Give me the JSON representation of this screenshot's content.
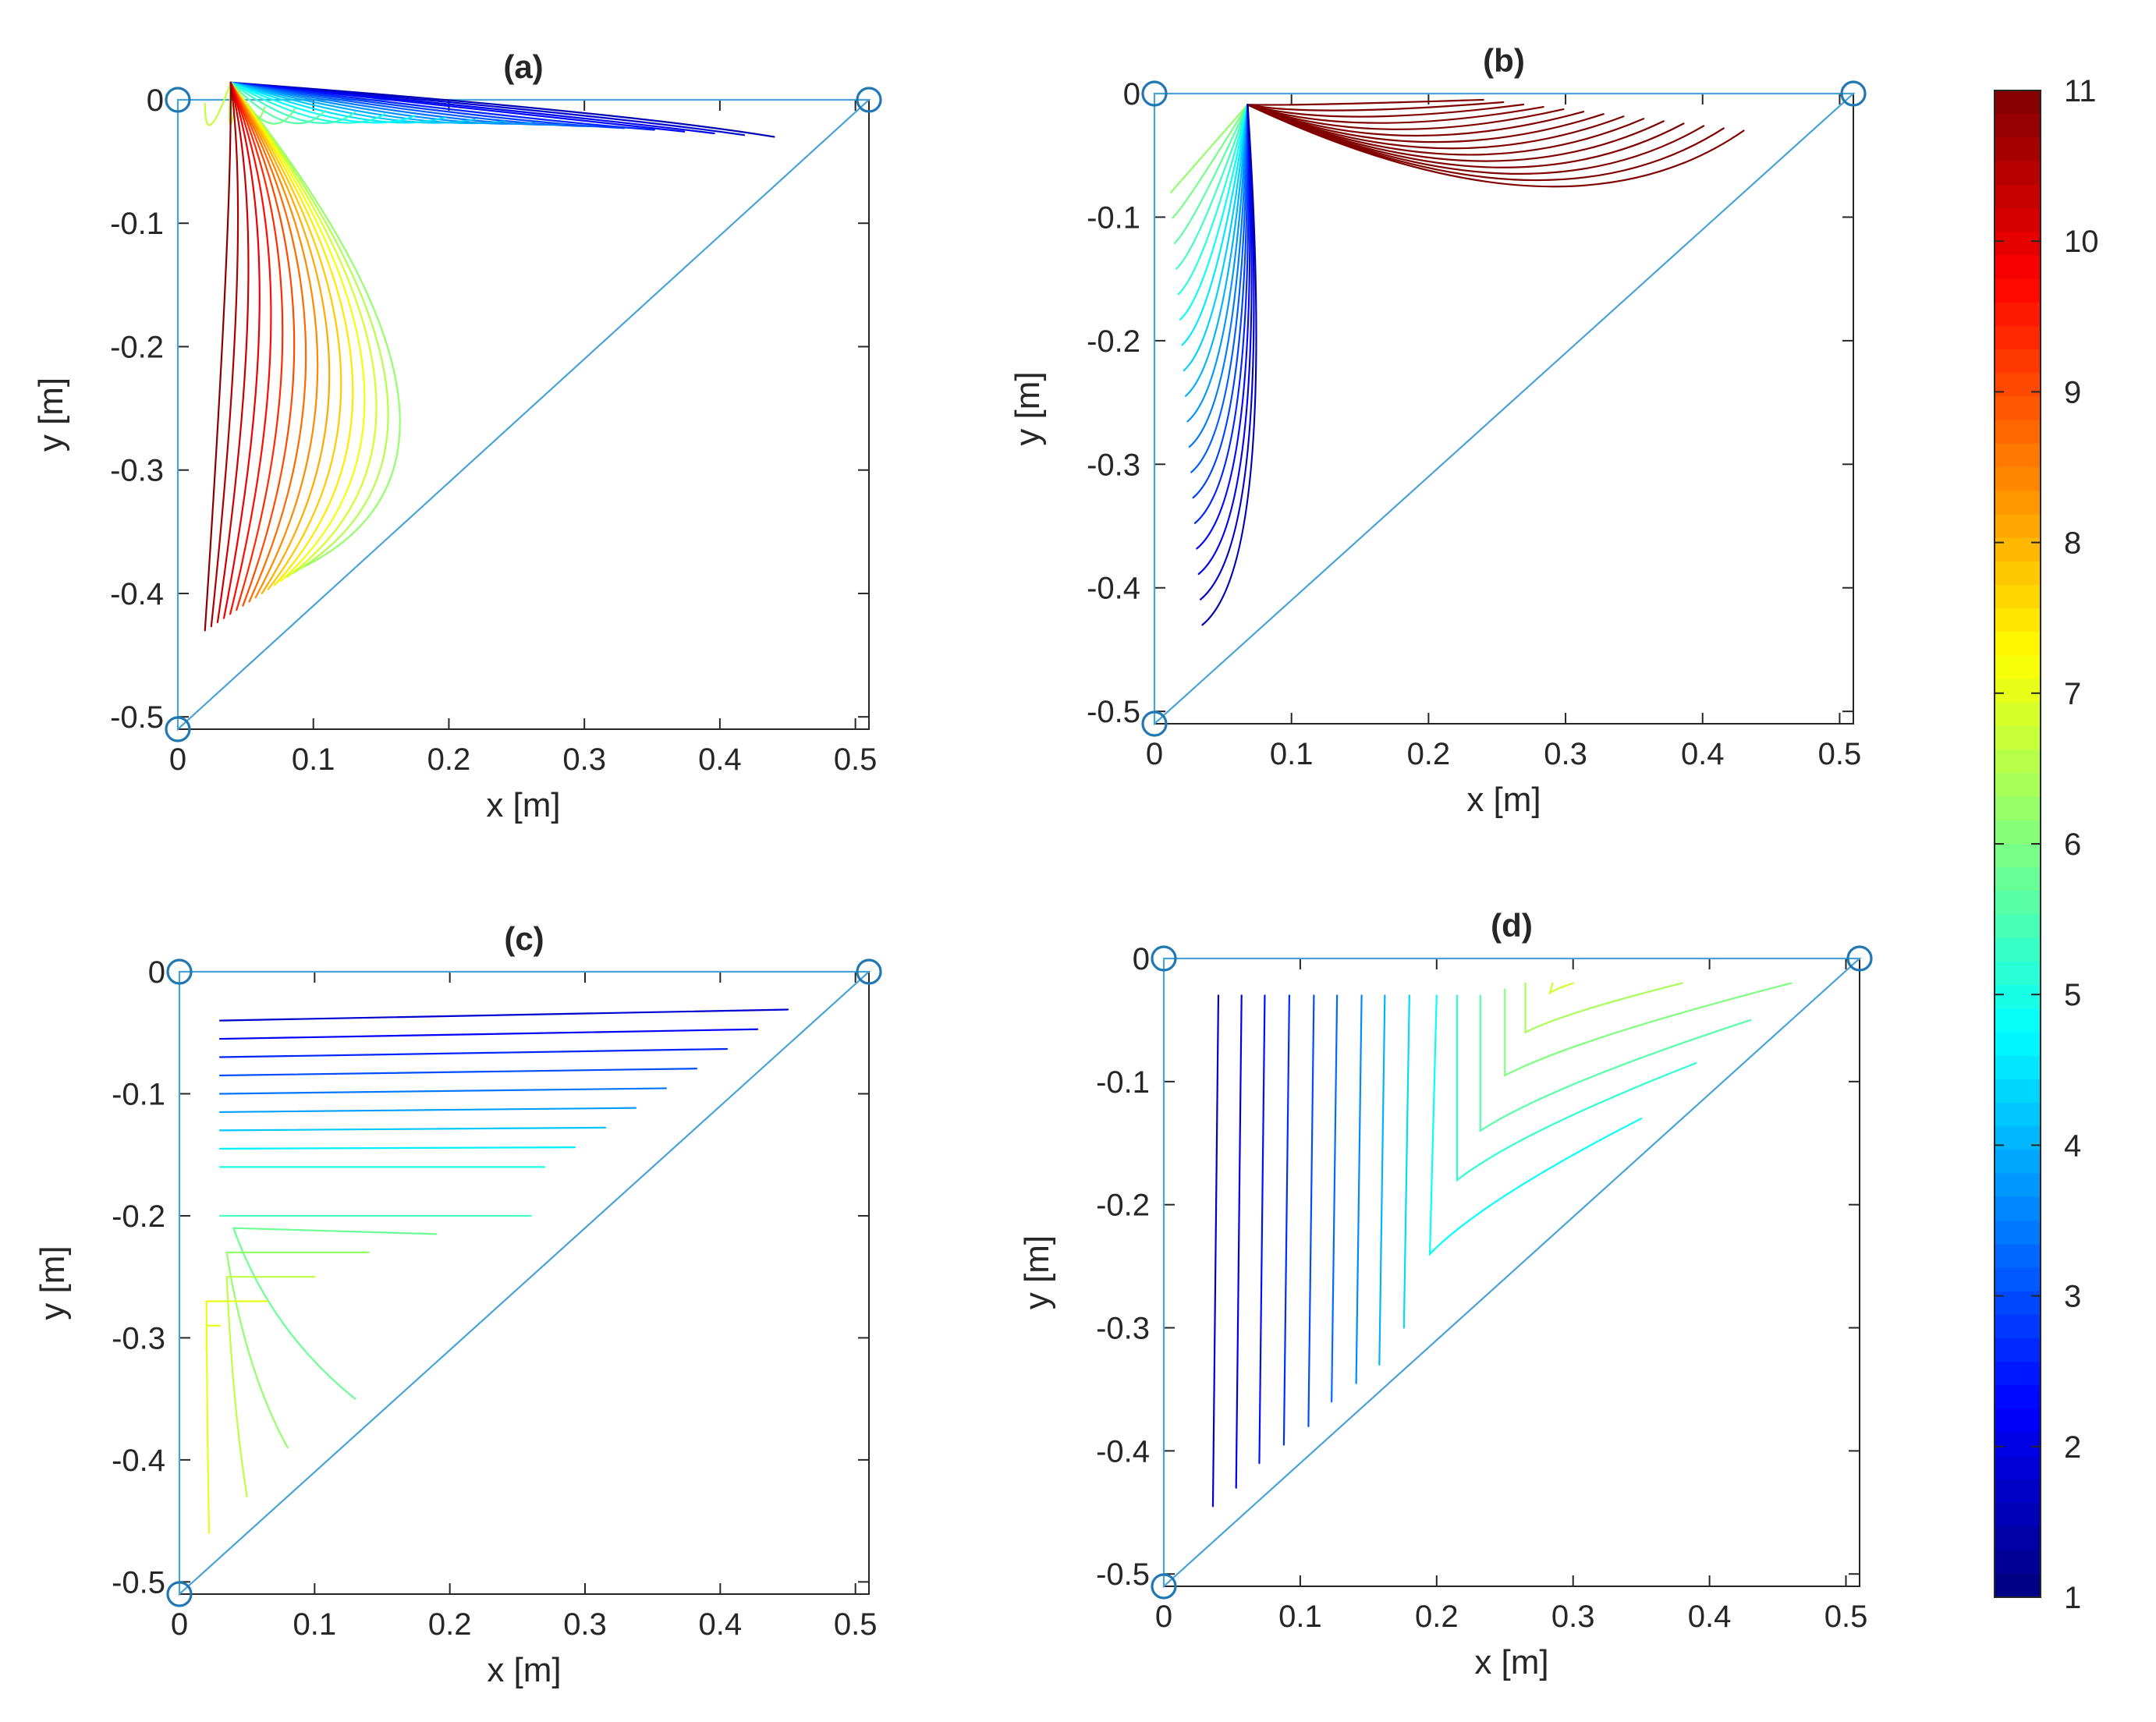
{
  "chart_data": [
    {
      "type": "contour",
      "panel": "a",
      "title": "(a)",
      "xlabel": "x [m]",
      "ylabel": "y [m]",
      "xlim": [
        0,
        0.51
      ],
      "ylim": [
        -0.51,
        0.0
      ],
      "xticks": [
        0,
        0.1,
        0.2,
        0.3,
        0.4,
        0.5
      ],
      "xtick_labels": [
        "0",
        "0.1",
        "0.2",
        "0.3",
        "0.4",
        "0.5"
      ],
      "yticks": [
        0,
        -0.1,
        -0.2,
        -0.3,
        -0.4,
        -0.5
      ],
      "ytick_labels": [
        "0",
        "-0.1",
        "-0.2",
        "-0.3",
        "-0.4",
        "-0.5"
      ],
      "domain_vertices": [
        [
          0,
          0
        ],
        [
          0.51,
          0
        ],
        [
          0,
          -0.51
        ]
      ],
      "contour_range": [
        1.5,
        10.9
      ],
      "contours": {
        "fan": [
          0.015,
          0.05
        ],
        "corner": [
          0.075,
          -0.04
        ],
        "nA": 20,
        "nB": 16,
        "A_end": [
          [
            0.44,
            -0.03
          ],
          [
            0.02,
            -0.003
          ]
        ],
        "B_end": [
          [
            0.09,
            -0.38
          ],
          [
            0.02,
            -0.43
          ]
        ],
        "bend_a": [
          [
            0.33,
            -0.01
          ],
          [
            0.02,
            -0.045
          ]
        ],
        "bend_b": [
          [
            0.26,
            -0.29
          ],
          [
            0.04,
            -0.1
          ]
        ]
      }
    },
    {
      "type": "contour",
      "panel": "b",
      "title": "(b)",
      "xlabel": "x [m]",
      "ylabel": "y [m]",
      "xlim": [
        0,
        0.51
      ],
      "ylim": [
        -0.51,
        0.0
      ],
      "xticks": [
        0,
        0.1,
        0.2,
        0.3,
        0.4,
        0.5
      ],
      "xtick_labels": [
        "0",
        "0.1",
        "0.2",
        "0.3",
        "0.4",
        "0.5"
      ],
      "yticks": [
        0,
        -0.1,
        -0.2,
        -0.3,
        -0.4,
        -0.5
      ],
      "ytick_labels": [
        "0",
        "-0.1",
        "-0.2",
        "-0.3",
        "-0.4",
        "-0.5"
      ],
      "domain_vertices": [
        [
          0,
          0
        ],
        [
          0.51,
          0
        ],
        [
          0,
          -0.51
        ]
      ],
      "contour_range": [
        1.5,
        10.9
      ],
      "contours": {
        "fan": [
          0.07,
          0.005
        ],
        "corner": [
          0.065,
          -0.03
        ],
        "nA": 14,
        "nB": 18,
        "A_end": [
          [
            0.43,
            -0.03
          ],
          [
            0.24,
            -0.005
          ]
        ],
        "B_end": [
          [
            0.012,
            -0.08
          ],
          [
            0.035,
            -0.43
          ]
        ],
        "bend_a": [
          [
            0.3,
            -0.13
          ],
          [
            0.1,
            -0.01
          ]
        ],
        "bend_b": [
          [
            0.02,
            -0.07
          ],
          [
            0.09,
            -0.38
          ]
        ]
      }
    },
    {
      "type": "contour",
      "panel": "c",
      "title": "(c)",
      "xlabel": "x [m]",
      "ylabel": "y [m]",
      "xlim": [
        0,
        0.51
      ],
      "ylim": [
        -0.51,
        0.0
      ],
      "xticks": [
        0,
        0.1,
        0.2,
        0.3,
        0.4,
        0.5
      ],
      "xtick_labels": [
        "0",
        "0.1",
        "0.2",
        "0.3",
        "0.4",
        "0.5"
      ],
      "yticks": [
        0,
        -0.1,
        -0.2,
        -0.3,
        -0.4,
        -0.5
      ],
      "ytick_labels": [
        "0",
        "-0.1",
        "-0.2",
        "-0.3",
        "-0.4",
        "-0.5"
      ],
      "domain_vertices": [
        [
          0,
          0
        ],
        [
          0.51,
          0
        ],
        [
          0,
          -0.51
        ]
      ],
      "contour_levels": [
        1.8,
        2.2,
        2.6,
        3.0,
        3.4,
        3.8,
        4.2,
        4.6,
        5.0,
        5.4,
        5.8,
        6.2,
        6.6,
        7.0
      ],
      "contours": {
        "flat_count": 9,
        "flat_y": [
          -0.04,
          -0.16
        ],
        "flat_x_start": 0.03,
        "flat_x_end": [
          0.45,
          0.27
        ],
        "flat_slope": 0.015,
        "chevrons": [
          {
            "start": [
              0.26,
              -0.2
            ],
            "corner": [
              0.03,
              -0.2
            ],
            "end": [
              0.03,
              -0.2
            ]
          },
          {
            "start": [
              0.19,
              -0.215
            ],
            "corner": [
              0.04,
              -0.21
            ],
            "end": [
              0.13,
              -0.35
            ]
          },
          {
            "start": [
              0.14,
              -0.23
            ],
            "corner": [
              0.035,
              -0.23
            ],
            "end": [
              0.08,
              -0.39
            ]
          },
          {
            "start": [
              0.1,
              -0.25
            ],
            "corner": [
              0.035,
              -0.25
            ],
            "end": [
              0.05,
              -0.43
            ]
          },
          {
            "start": [
              0.065,
              -0.27
            ],
            "corner": [
              0.02,
              -0.27
            ],
            "end": [
              0.022,
              -0.46
            ]
          },
          {
            "start": [
              0.03,
              -0.29
            ],
            "corner": [
              0.02,
              -0.29
            ],
            "end": [
              0.02,
              -0.31
            ]
          }
        ]
      }
    },
    {
      "type": "contour",
      "panel": "d",
      "title": "(d)",
      "xlabel": "x [m]",
      "ylabel": "y [m]",
      "xlim": [
        0,
        0.51
      ],
      "ylim": [
        -0.51,
        0.0
      ],
      "xticks": [
        0,
        0.1,
        0.2,
        0.3,
        0.4,
        0.5
      ],
      "xtick_labels": [
        "0",
        "0.1",
        "0.2",
        "0.3",
        "0.4",
        "0.5"
      ],
      "yticks": [
        0,
        -0.1,
        -0.2,
        -0.3,
        -0.4,
        -0.5
      ],
      "ytick_labels": [
        "0",
        "-0.1",
        "-0.2",
        "-0.3",
        "-0.4",
        "-0.5"
      ],
      "domain_vertices": [
        [
          0,
          0
        ],
        [
          0.51,
          0
        ],
        [
          0,
          -0.51
        ]
      ],
      "contour_levels": [
        1.8,
        2.1,
        2.4,
        2.7,
        3.0,
        3.3,
        3.6,
        4.0,
        4.4,
        4.8,
        5.2,
        5.6,
        6.0,
        6.4,
        6.8
      ],
      "contours": {
        "verticals": [
          {
            "x": 0.04,
            "y_top": -0.03,
            "y_bot": -0.445
          },
          {
            "x": 0.057,
            "y_top": -0.03,
            "y_bot": -0.43
          },
          {
            "x": 0.074,
            "y_top": -0.03,
            "y_bot": -0.41
          },
          {
            "x": 0.092,
            "y_top": -0.03,
            "y_bot": -0.395
          },
          {
            "x": 0.11,
            "y_top": -0.03,
            "y_bot": -0.38
          },
          {
            "x": 0.127,
            "y_top": -0.03,
            "y_bot": -0.36
          },
          {
            "x": 0.145,
            "y_top": -0.03,
            "y_bot": -0.345
          },
          {
            "x": 0.162,
            "y_top": -0.03,
            "y_bot": -0.33
          },
          {
            "x": 0.18,
            "y_top": -0.03,
            "y_bot": -0.3
          }
        ],
        "chevrons": [
          {
            "start": [
              0.2,
              -0.03
            ],
            "corner": [
              0.195,
              -0.24
            ],
            "end": [
              0.35,
              -0.13
            ]
          },
          {
            "start": [
              0.215,
              -0.03
            ],
            "corner": [
              0.215,
              -0.18
            ],
            "end": [
              0.39,
              -0.085
            ]
          },
          {
            "start": [
              0.232,
              -0.03
            ],
            "corner": [
              0.232,
              -0.14
            ],
            "end": [
              0.43,
              -0.05
            ]
          },
          {
            "start": [
              0.25,
              -0.025
            ],
            "corner": [
              0.25,
              -0.095
            ],
            "end": [
              0.46,
              -0.02
            ]
          },
          {
            "start": [
              0.265,
              -0.02
            ],
            "corner": [
              0.265,
              -0.06
            ],
            "end": [
              0.38,
              -0.02
            ]
          },
          {
            "start": [
              0.285,
              -0.02
            ],
            "corner": [
              0.283,
              -0.028
            ],
            "end": [
              0.3,
              -0.02
            ]
          }
        ]
      }
    }
  ],
  "colorbar": {
    "min": 1,
    "max": 11,
    "ticks": [
      1,
      2,
      3,
      4,
      5,
      6,
      7,
      8,
      9,
      10,
      11
    ],
    "tick_labels": [
      "1",
      "2",
      "3",
      "4",
      "5",
      "6",
      "7",
      "8",
      "9",
      "10",
      "11"
    ],
    "colormap": "jet",
    "steps": 64
  },
  "colors": {
    "outline": "#4aa3d6",
    "node_marker": "#1f77b4",
    "axes": "#262626"
  }
}
